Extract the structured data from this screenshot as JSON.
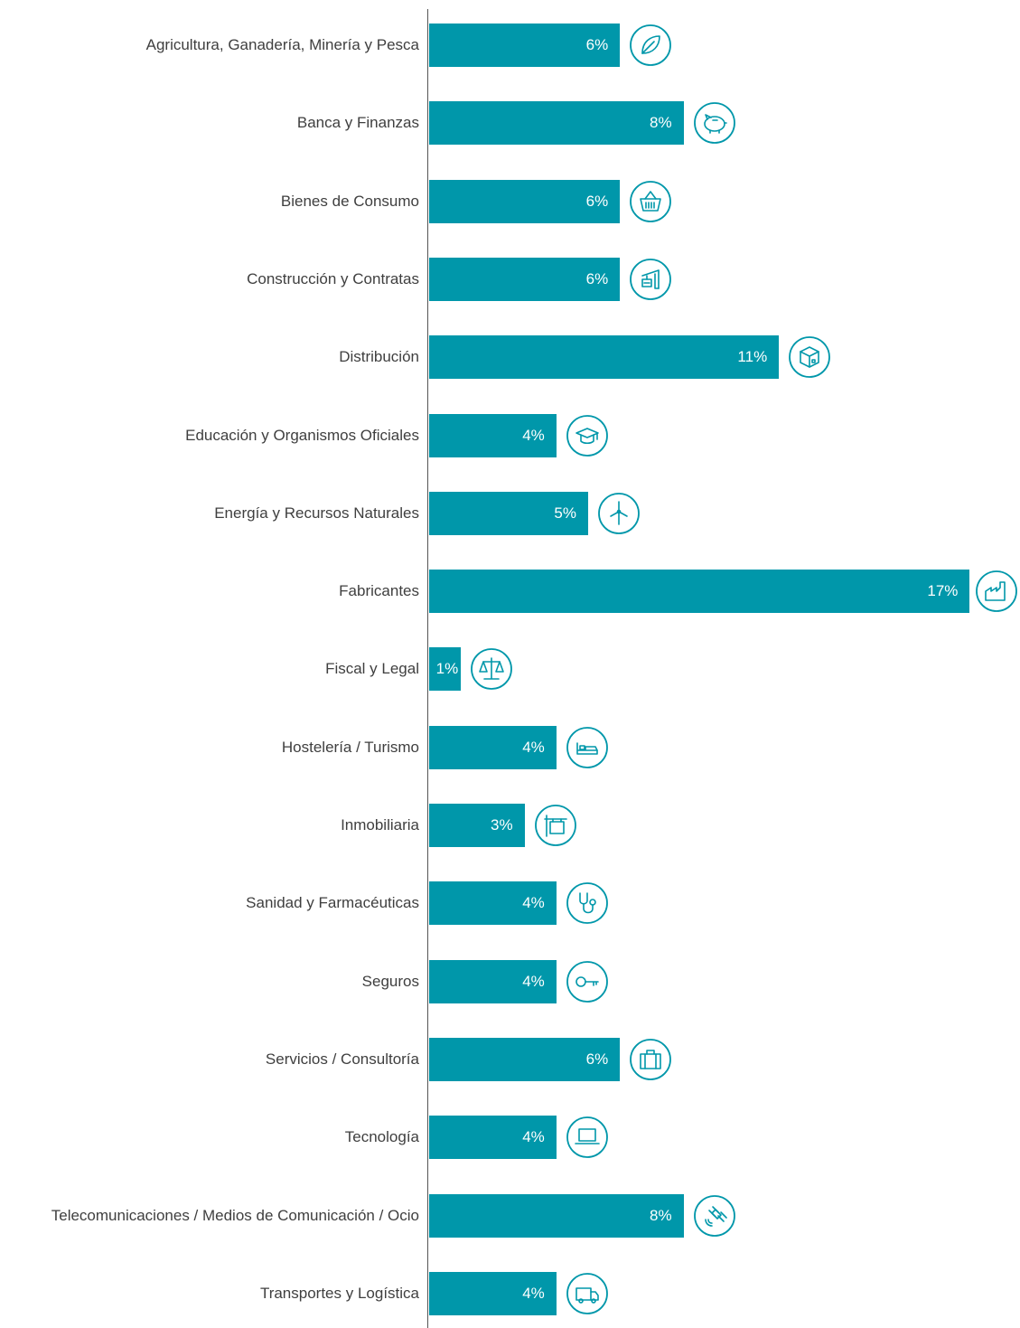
{
  "chart_data": {
    "type": "bar",
    "orientation": "horizontal",
    "categories": [
      "Agricultura, Ganadería, Minería y Pesca",
      "Banca  y Finanzas",
      "Bienes de Consumo",
      "Construcción y Contratas",
      "Distribución",
      "Educación y Organismos Oficiales",
      "Energía y Recursos Naturales ",
      "Fabricantes",
      "Fiscal y Legal",
      "Hostelería / Turismo",
      "Inmobiliaria",
      "Sanidad y Farmacéuticas",
      "Seguros",
      "Servicios / Consultoría",
      "Tecnología",
      "Telecomunicaciones / Medios de Comunicación / Ocio",
      "Transportes y Logística "
    ],
    "values": [
      6,
      8,
      6,
      6,
      11,
      4,
      5,
      17,
      1,
      4,
      3,
      4,
      4,
      6,
      4,
      8,
      4
    ],
    "value_labels": [
      "6%",
      "8%",
      "6%",
      "6%",
      "11%",
      "4%",
      "5%",
      "17%",
      "1%",
      "4%",
      "3%",
      "4%",
      "4%",
      "6%",
      "4%",
      "8%",
      "4%"
    ],
    "icons": [
      "leaf-icon",
      "piggy-bank-icon",
      "shopping-basket-icon",
      "construction-crane-icon",
      "package-box-icon",
      "graduation-cap-icon",
      "wind-turbine-icon",
      "factory-icon",
      "scales-icon",
      "bed-icon",
      "real-estate-sign-icon",
      "stethoscope-icon",
      "key-icon",
      "briefcase-icon",
      "laptop-icon",
      "satellite-icon",
      "delivery-truck-icon"
    ],
    "xlim": [
      0,
      17
    ],
    "grid": false,
    "legend": "none",
    "bar_color": "#0097aa",
    "text_color": "#3f3f3f"
  }
}
